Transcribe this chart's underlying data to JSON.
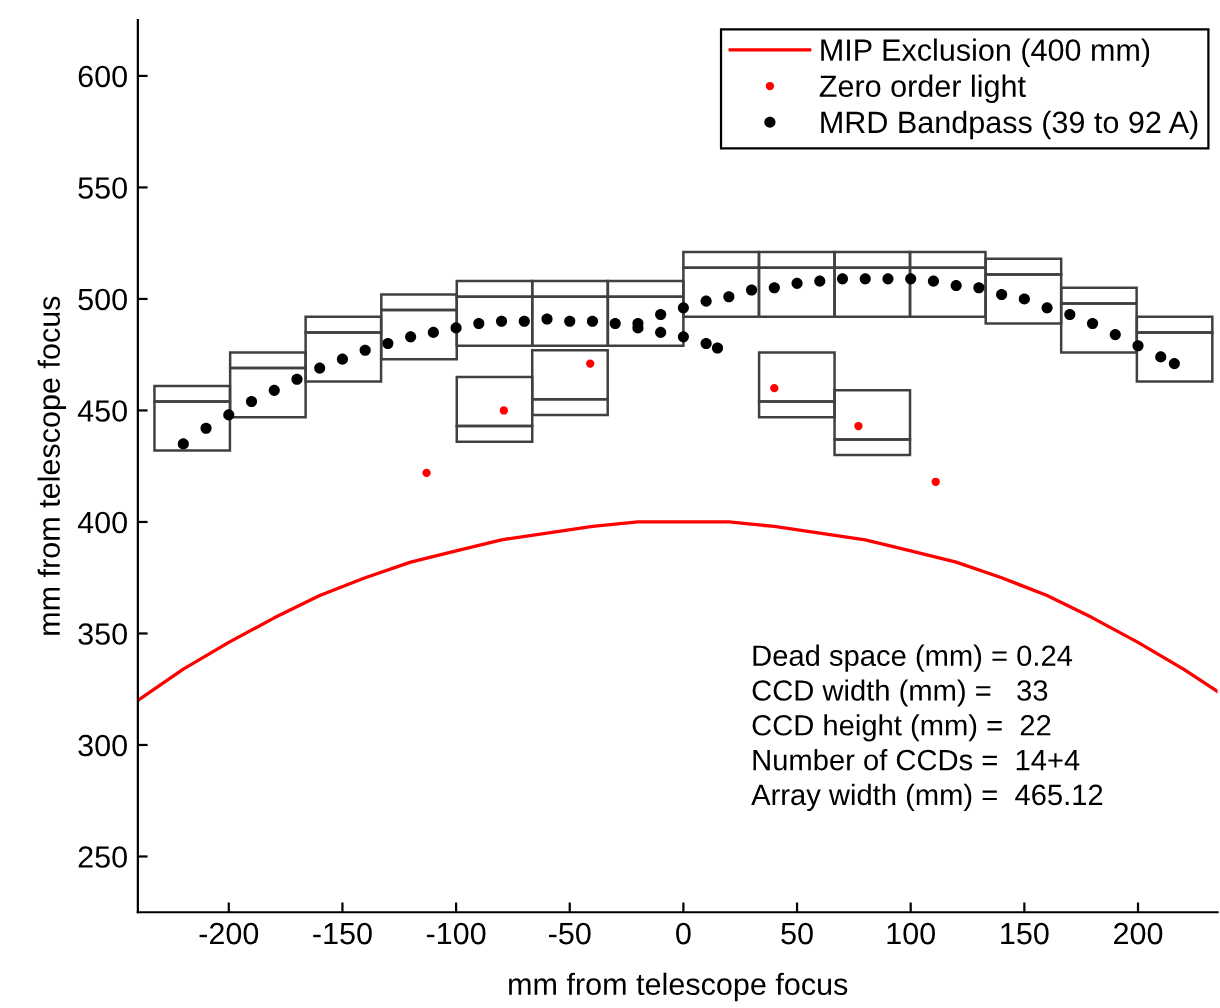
{
  "chart_data": {
    "type": "line",
    "xlabel": "mm from telescope focus",
    "ylabel": "mm from telescope focus",
    "xlim": [
      -240,
      235
    ],
    "ylim": [
      225,
      625
    ],
    "xticks": [
      -200,
      -150,
      -100,
      -50,
      0,
      50,
      100,
      150,
      200
    ],
    "yticks": [
      250,
      300,
      350,
      400,
      450,
      500,
      550,
      600
    ],
    "grid": false,
    "legend": "top right",
    "annotations": [
      "Dead space (mm) = 0.24",
      "CCD width (mm) =   33",
      "CCD height (mm) =  22",
      "Number of CCDs =  14+4",
      "Array width (mm) =  465.12"
    ],
    "series": [
      {
        "name": "MIP Exclusion (400 mm)",
        "color": "#ff0000",
        "marker": "none",
        "x": [
          -240,
          -220,
          -200,
          -180,
          -160,
          -140,
          -120,
          -100,
          -80,
          -60,
          -40,
          -20,
          0,
          20,
          40,
          60,
          80,
          100,
          120,
          140,
          160,
          180,
          200,
          220,
          235
        ],
        "values": [
          320,
          334,
          346,
          357,
          367,
          375,
          382,
          387,
          392,
          395,
          398,
          400,
          400,
          400,
          398,
          395,
          392,
          387,
          382,
          375,
          367,
          357,
          346,
          334,
          324
        ]
      },
      {
        "name": "Zero order light",
        "type": "scatter",
        "color": "#ff0000",
        "marker": "circle",
        "x": [
          -113,
          -79,
          -41,
          40,
          77,
          111
        ],
        "values": [
          422,
          450,
          471,
          460,
          443,
          418
        ]
      },
      {
        "name": "MRD Bandpass (39 to 92 A)",
        "type": "scatter",
        "color": "#000000",
        "marker": "circle",
        "x": [
          -220,
          -210,
          -200,
          -190,
          -180,
          -170,
          -160,
          -150,
          -140,
          -130,
          -120,
          -110,
          -100,
          -90,
          -80,
          -70,
          -60,
          -50,
          -40,
          -30,
          -20,
          -10,
          0,
          10,
          15,
          -20,
          -10,
          0,
          10,
          20,
          30,
          40,
          50,
          60,
          70,
          80,
          90,
          100,
          110,
          120,
          130,
          140,
          150,
          160,
          170,
          180,
          190,
          200,
          210,
          216
        ],
        "values": [
          435,
          442,
          448,
          454,
          459,
          464,
          469,
          473,
          477,
          480,
          483,
          485,
          487,
          489,
          490,
          490,
          491,
          490,
          490,
          489,
          487,
          485,
          483,
          480,
          478,
          489,
          493,
          496,
          499,
          501,
          504,
          505,
          507,
          508,
          509,
          509,
          509,
          509,
          508,
          506,
          505,
          502,
          500,
          496,
          493,
          489,
          484,
          479,
          474,
          471
        ]
      },
      {
        "type": "bar",
        "color": "#404040",
        "x": [
          -216.1,
          -182.8,
          -149.6,
          -116.3,
          -83.1,
          -49.9,
          -16.6,
          16.6,
          49.9,
          83.1,
          116.3,
          149.6,
          182.8,
          216.1
        ],
        "base": [
          432,
          447,
          463,
          473,
          479,
          479,
          479,
          492,
          492,
          492,
          492,
          489,
          476,
          463
        ],
        "values": [
          22,
          22,
          22,
          22,
          22,
          22,
          22,
          22,
          22,
          22,
          22,
          22,
          22,
          22
        ]
      },
      {
        "type": "bar",
        "color": "#404040",
        "x": [
          -216.1,
          -182.8,
          -149.6,
          -116.3,
          -83.1,
          -49.9,
          -16.6,
          16.6,
          49.9,
          83.1,
          116.3,
          149.6,
          182.8,
          216.1
        ],
        "base": [
          454,
          469,
          485,
          495,
          501,
          501,
          501,
          514,
          514,
          514,
          514,
          511,
          498,
          485
        ],
        "values": [
          7,
          7,
          7,
          7,
          7,
          7,
          7,
          7,
          7,
          7,
          7,
          7,
          7,
          7
        ]
      },
      {
        "type": "bar",
        "color": "#404040",
        "x": [
          -83.1,
          -49.9,
          49.9,
          83.1
        ],
        "base": [
          436,
          448,
          447,
          430
        ],
        "values": [
          7,
          7,
          7,
          7
        ]
      },
      {
        "type": "bar",
        "color": "#404040",
        "x": [
          -83.1,
          -49.9,
          49.9,
          83.1
        ],
        "base": [
          443,
          455,
          454,
          437
        ],
        "values": [
          22,
          22,
          22,
          22
        ]
      }
    ]
  }
}
